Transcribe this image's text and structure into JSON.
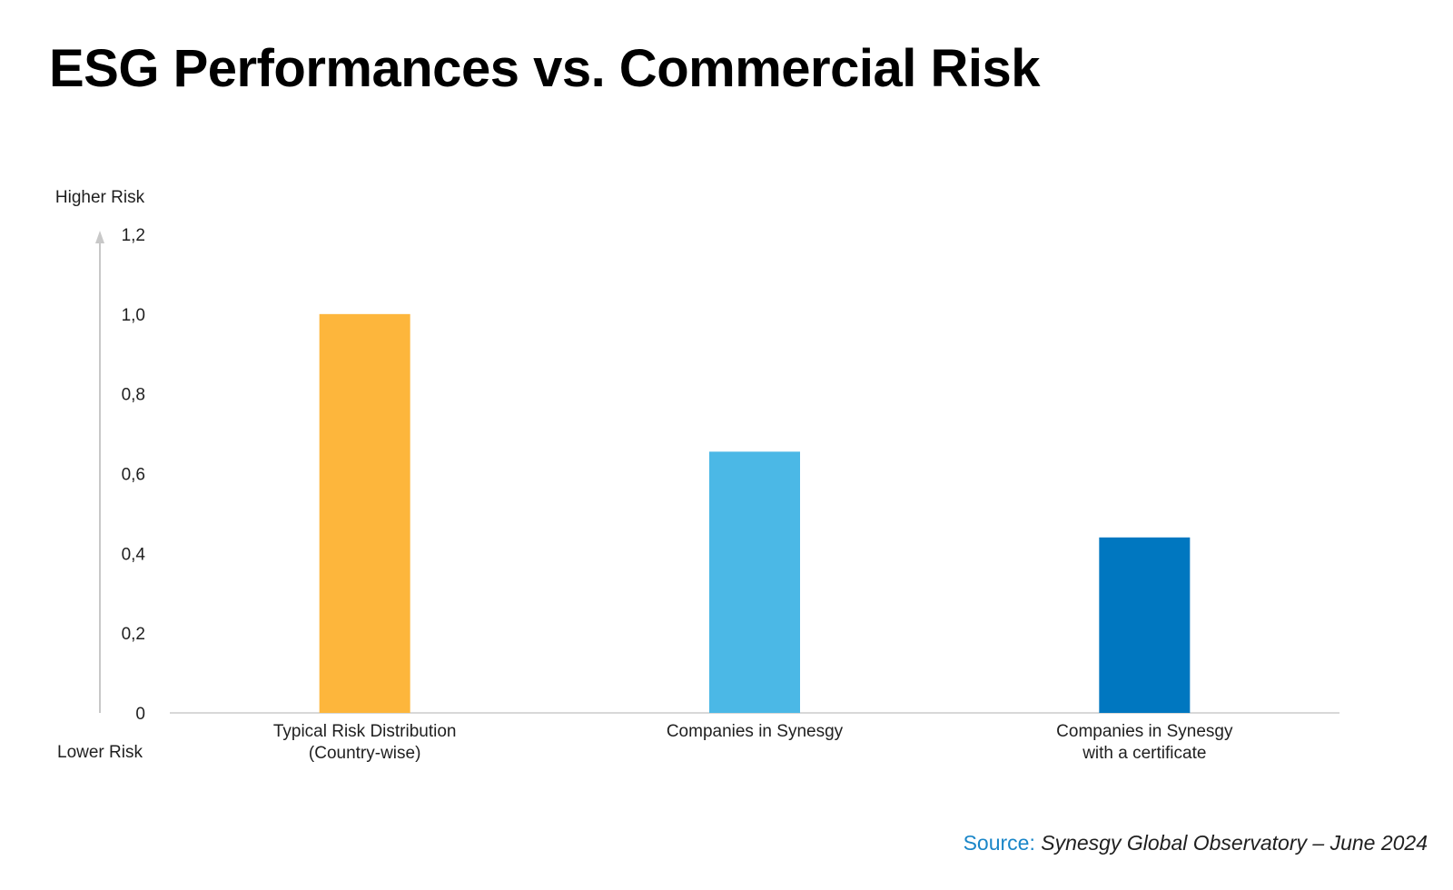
{
  "chart_data": {
    "type": "bar",
    "title": "ESG Performances vs. Commercial Risk",
    "ylabel_top": "Higher Risk",
    "ylabel_bottom": "Lower Risk",
    "ylim": [
      0,
      1.2
    ],
    "yticks": [
      {
        "value": 0,
        "label": "0"
      },
      {
        "value": 0.2,
        "label": "0,2"
      },
      {
        "value": 0.4,
        "label": "0,4"
      },
      {
        "value": 0.6,
        "label": "0,6"
      },
      {
        "value": 0.8,
        "label": "0,8"
      },
      {
        "value": 1.0,
        "label": "1,0"
      },
      {
        "value": 1.2,
        "label": "1,2"
      }
    ],
    "categories": [
      [
        "Typical Risk Distribution",
        "(Country-wise)"
      ],
      [
        "Companies in Synesgy"
      ],
      [
        "Companies in Synesgy",
        "with a certificate"
      ]
    ],
    "values": [
      1.0,
      0.655,
      0.44
    ],
    "colors": [
      "#FDB63C",
      "#4BB8E6",
      "#0077C0"
    ],
    "grid": false,
    "legend": "none"
  },
  "source": {
    "label": "Source:",
    "text": "Synesgy Global Observatory – June 2024"
  }
}
